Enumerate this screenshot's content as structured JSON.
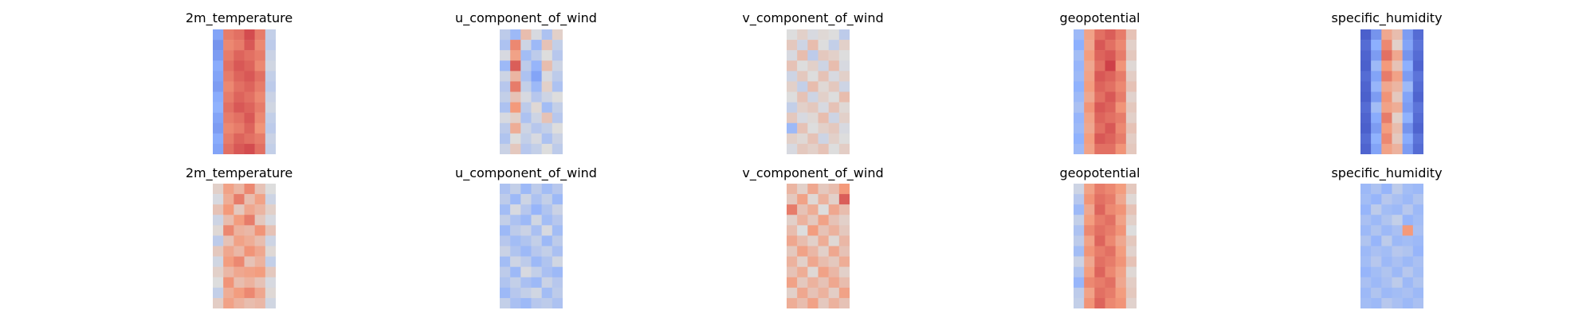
{
  "chart_data": [
    {
      "type": "heatmap",
      "title": "2m_temperature",
      "colormap": "coolwarm",
      "field": {
        "rows": 12,
        "cols": 6,
        "values": [
          [
            0.22,
            0.8,
            0.82,
            0.88,
            0.8,
            0.42
          ],
          [
            0.18,
            0.78,
            0.8,
            0.86,
            0.78,
            0.4
          ],
          [
            0.2,
            0.8,
            0.84,
            0.82,
            0.8,
            0.44
          ],
          [
            0.24,
            0.82,
            0.86,
            0.84,
            0.78,
            0.46
          ],
          [
            0.22,
            0.8,
            0.84,
            0.86,
            0.82,
            0.42
          ],
          [
            0.2,
            0.78,
            0.82,
            0.84,
            0.8,
            0.4
          ],
          [
            0.24,
            0.8,
            0.84,
            0.82,
            0.78,
            0.44
          ],
          [
            0.26,
            0.82,
            0.86,
            0.84,
            0.8,
            0.46
          ],
          [
            0.22,
            0.8,
            0.82,
            0.86,
            0.78,
            0.42
          ],
          [
            0.2,
            0.78,
            0.8,
            0.84,
            0.76,
            0.4
          ],
          [
            0.24,
            0.8,
            0.84,
            0.82,
            0.8,
            0.44
          ],
          [
            0.22,
            0.82,
            0.86,
            0.88,
            0.82,
            0.42
          ]
        ]
      }
    },
    {
      "type": "heatmap",
      "title": "u_component_of_wind",
      "colormap": "coolwarm",
      "field": {
        "rows": 12,
        "cols": 6,
        "values": [
          [
            0.4,
            0.3,
            0.62,
            0.48,
            0.35,
            0.55
          ],
          [
            0.35,
            0.78,
            0.45,
            0.3,
            0.6,
            0.42
          ],
          [
            0.48,
            0.72,
            0.32,
            0.4,
            0.5,
            0.38
          ],
          [
            0.3,
            0.85,
            0.4,
            0.28,
            0.62,
            0.45
          ],
          [
            0.45,
            0.65,
            0.35,
            0.22,
            0.48,
            0.4
          ],
          [
            0.38,
            0.8,
            0.42,
            0.3,
            0.55,
            0.35
          ],
          [
            0.42,
            0.6,
            0.48,
            0.38,
            0.45,
            0.5
          ],
          [
            0.35,
            0.75,
            0.4,
            0.52,
            0.32,
            0.42
          ],
          [
            0.48,
            0.55,
            0.35,
            0.45,
            0.6,
            0.38
          ],
          [
            0.4,
            0.68,
            0.45,
            0.38,
            0.42,
            0.5
          ],
          [
            0.36,
            0.5,
            0.42,
            0.48,
            0.35,
            0.44
          ],
          [
            0.44,
            0.58,
            0.38,
            0.42,
            0.5,
            0.4
          ]
        ]
      }
    },
    {
      "type": "heatmap",
      "title": "v_component_of_wind",
      "colormap": "coolwarm",
      "field": {
        "rows": 12,
        "cols": 6,
        "values": [
          [
            0.5,
            0.55,
            0.48,
            0.52,
            0.5,
            0.4
          ],
          [
            0.58,
            0.45,
            0.62,
            0.5,
            0.42,
            0.55
          ],
          [
            0.48,
            0.62,
            0.4,
            0.58,
            0.55,
            0.5
          ],
          [
            0.6,
            0.5,
            0.55,
            0.45,
            0.62,
            0.48
          ],
          [
            0.45,
            0.58,
            0.5,
            0.6,
            0.48,
            0.55
          ],
          [
            0.55,
            0.42,
            0.62,
            0.52,
            0.58,
            0.45
          ],
          [
            0.5,
            0.6,
            0.45,
            0.55,
            0.5,
            0.62
          ],
          [
            0.42,
            0.55,
            0.58,
            0.48,
            0.6,
            0.52
          ],
          [
            0.58,
            0.48,
            0.52,
            0.62,
            0.45,
            0.55
          ],
          [
            0.3,
            0.6,
            0.5,
            0.55,
            0.58,
            0.48
          ],
          [
            0.55,
            0.52,
            0.6,
            0.45,
            0.55,
            0.5
          ],
          [
            0.48,
            0.58,
            0.55,
            0.6,
            0.5,
            0.56
          ]
        ]
      }
    },
    {
      "type": "heatmap",
      "title": "geopotential",
      "colormap": "coolwarm",
      "field": {
        "rows": 12,
        "cols": 6,
        "values": [
          [
            0.3,
            0.72,
            0.82,
            0.85,
            0.8,
            0.6
          ],
          [
            0.25,
            0.7,
            0.86,
            0.82,
            0.78,
            0.55
          ],
          [
            0.32,
            0.74,
            0.84,
            0.86,
            0.8,
            0.58
          ],
          [
            0.28,
            0.7,
            0.82,
            0.9,
            0.76,
            0.52
          ],
          [
            0.3,
            0.72,
            0.86,
            0.84,
            0.8,
            0.56
          ],
          [
            0.26,
            0.74,
            0.84,
            0.82,
            0.78,
            0.6
          ],
          [
            0.3,
            0.7,
            0.82,
            0.86,
            0.8,
            0.54
          ],
          [
            0.34,
            0.76,
            0.86,
            0.84,
            0.76,
            0.58
          ],
          [
            0.28,
            0.72,
            0.84,
            0.82,
            0.8,
            0.55
          ],
          [
            0.3,
            0.7,
            0.82,
            0.86,
            0.78,
            0.6
          ],
          [
            0.26,
            0.74,
            0.86,
            0.84,
            0.8,
            0.56
          ],
          [
            0.3,
            0.72,
            0.82,
            0.82,
            0.76,
            0.58
          ]
        ]
      }
    },
    {
      "type": "heatmap",
      "title": "specific_humidity",
      "colormap": "coolwarm",
      "field": {
        "rows": 12,
        "cols": 6,
        "values": [
          [
            0.05,
            0.18,
            0.7,
            0.62,
            0.2,
            0.08
          ],
          [
            0.08,
            0.25,
            0.78,
            0.55,
            0.22,
            0.1
          ],
          [
            0.06,
            0.2,
            0.82,
            0.7,
            0.18,
            0.08
          ],
          [
            0.05,
            0.3,
            0.75,
            0.6,
            0.25,
            0.06
          ],
          [
            0.08,
            0.22,
            0.8,
            0.72,
            0.2,
            0.1
          ],
          [
            0.06,
            0.28,
            0.7,
            0.65,
            0.3,
            0.08
          ],
          [
            0.05,
            0.2,
            0.76,
            0.58,
            0.22,
            0.06
          ],
          [
            0.08,
            0.32,
            0.72,
            0.68,
            0.2,
            0.1
          ],
          [
            0.06,
            0.24,
            0.8,
            0.55,
            0.26,
            0.08
          ],
          [
            0.05,
            0.2,
            0.74,
            0.62,
            0.18,
            0.06
          ],
          [
            0.08,
            0.26,
            0.78,
            0.58,
            0.24,
            0.1
          ],
          [
            0.06,
            0.22,
            0.72,
            0.66,
            0.2,
            0.08
          ]
        ]
      }
    },
    {
      "type": "heatmap",
      "title": "2m_temperature",
      "colormap": "coolwarm",
      "field": {
        "rows": 12,
        "cols": 6,
        "values": [
          [
            0.55,
            0.72,
            0.65,
            0.78,
            0.6,
            0.5
          ],
          [
            0.48,
            0.68,
            0.8,
            0.62,
            0.72,
            0.45
          ],
          [
            0.6,
            0.75,
            0.58,
            0.7,
            0.65,
            0.55
          ],
          [
            0.45,
            0.62,
            0.74,
            0.8,
            0.58,
            0.48
          ],
          [
            0.52,
            0.78,
            0.66,
            0.64,
            0.76,
            0.6
          ],
          [
            0.4,
            0.6,
            0.72,
            0.68,
            0.62,
            0.45
          ],
          [
            0.58,
            0.7,
            0.64,
            0.76,
            0.7,
            0.52
          ],
          [
            0.46,
            0.74,
            0.78,
            0.6,
            0.66,
            0.42
          ],
          [
            0.55,
            0.64,
            0.7,
            0.72,
            0.74,
            0.58
          ],
          [
            0.5,
            0.76,
            0.62,
            0.66,
            0.6,
            0.48
          ],
          [
            0.42,
            0.68,
            0.74,
            0.78,
            0.7,
            0.52
          ],
          [
            0.56,
            0.72,
            0.66,
            0.62,
            0.64,
            0.46
          ]
        ]
      }
    },
    {
      "type": "heatmap",
      "title": "u_component_of_wind",
      "colormap": "coolwarm",
      "field": {
        "rows": 12,
        "cols": 6,
        "values": [
          [
            0.35,
            0.42,
            0.3,
            0.4,
            0.32,
            0.38
          ],
          [
            0.4,
            0.3,
            0.45,
            0.35,
            0.42,
            0.3
          ],
          [
            0.32,
            0.48,
            0.38,
            0.28,
            0.36,
            0.44
          ],
          [
            0.42,
            0.35,
            0.3,
            0.46,
            0.32,
            0.38
          ],
          [
            0.3,
            0.4,
            0.44,
            0.34,
            0.48,
            0.32
          ],
          [
            0.38,
            0.32,
            0.36,
            0.42,
            0.3,
            0.4
          ],
          [
            0.44,
            0.36,
            0.3,
            0.38,
            0.42,
            0.34
          ],
          [
            0.32,
            0.45,
            0.4,
            0.3,
            0.36,
            0.46
          ],
          [
            0.4,
            0.3,
            0.48,
            0.42,
            0.34,
            0.3
          ],
          [
            0.36,
            0.42,
            0.34,
            0.3,
            0.44,
            0.38
          ],
          [
            0.3,
            0.38,
            0.42,
            0.46,
            0.32,
            0.4
          ],
          [
            0.42,
            0.34,
            0.3,
            0.38,
            0.4,
            0.35
          ]
        ]
      }
    },
    {
      "type": "heatmap",
      "title": "v_component_of_wind",
      "colormap": "coolwarm",
      "field": {
        "rows": 12,
        "cols": 6,
        "values": [
          [
            0.65,
            0.55,
            0.7,
            0.58,
            0.62,
            0.75
          ],
          [
            0.58,
            0.72,
            0.52,
            0.66,
            0.55,
            0.85
          ],
          [
            0.8,
            0.6,
            0.68,
            0.5,
            0.7,
            0.62
          ],
          [
            0.55,
            0.66,
            0.58,
            0.72,
            0.6,
            0.55
          ],
          [
            0.62,
            0.5,
            0.74,
            0.6,
            0.66,
            0.58
          ],
          [
            0.7,
            0.62,
            0.55,
            0.68,
            0.52,
            0.64
          ],
          [
            0.58,
            0.72,
            0.64,
            0.55,
            0.7,
            0.6
          ],
          [
            0.66,
            0.55,
            0.7,
            0.62,
            0.58,
            0.68
          ],
          [
            0.6,
            0.68,
            0.52,
            0.72,
            0.64,
            0.55
          ],
          [
            0.72,
            0.58,
            0.66,
            0.6,
            0.7,
            0.62
          ],
          [
            0.55,
            0.7,
            0.6,
            0.66,
            0.56,
            0.72
          ],
          [
            0.68,
            0.62,
            0.72,
            0.58,
            0.66,
            0.6
          ]
        ]
      }
    },
    {
      "type": "heatmap",
      "title": "geopotential",
      "colormap": "coolwarm",
      "field": {
        "rows": 12,
        "cols": 6,
        "values": [
          [
            0.45,
            0.72,
            0.8,
            0.78,
            0.74,
            0.58
          ],
          [
            0.38,
            0.76,
            0.82,
            0.8,
            0.7,
            0.52
          ],
          [
            0.3,
            0.7,
            0.84,
            0.78,
            0.76,
            0.6
          ],
          [
            0.42,
            0.74,
            0.8,
            0.82,
            0.72,
            0.55
          ],
          [
            0.35,
            0.78,
            0.82,
            0.8,
            0.76,
            0.5
          ],
          [
            0.4,
            0.72,
            0.84,
            0.78,
            0.7,
            0.58
          ],
          [
            0.32,
            0.76,
            0.8,
            0.82,
            0.74,
            0.54
          ],
          [
            0.44,
            0.7,
            0.82,
            0.8,
            0.76,
            0.6
          ],
          [
            0.36,
            0.74,
            0.84,
            0.78,
            0.72,
            0.52
          ],
          [
            0.28,
            0.78,
            0.8,
            0.82,
            0.7,
            0.56
          ],
          [
            0.4,
            0.72,
            0.82,
            0.8,
            0.74,
            0.58
          ],
          [
            0.42,
            0.76,
            0.84,
            0.78,
            0.76,
            0.54
          ]
        ]
      }
    },
    {
      "type": "heatmap",
      "title": "specific_humidity",
      "colormap": "coolwarm",
      "field": {
        "rows": 12,
        "cols": 6,
        "values": [
          [
            0.3,
            0.35,
            0.28,
            0.4,
            0.32,
            0.3
          ],
          [
            0.32,
            0.28,
            0.38,
            0.34,
            0.3,
            0.36
          ],
          [
            0.28,
            0.4,
            0.32,
            0.3,
            0.38,
            0.3
          ],
          [
            0.34,
            0.3,
            0.36,
            0.42,
            0.28,
            0.32
          ],
          [
            0.3,
            0.36,
            0.3,
            0.34,
            0.75,
            0.34
          ],
          [
            0.36,
            0.28,
            0.4,
            0.3,
            0.32,
            0.3
          ],
          [
            0.3,
            0.34,
            0.32,
            0.38,
            0.36,
            0.28
          ],
          [
            0.32,
            0.38,
            0.3,
            0.34,
            0.3,
            0.34
          ],
          [
            0.28,
            0.32,
            0.36,
            0.3,
            0.38,
            0.32
          ],
          [
            0.34,
            0.3,
            0.34,
            0.4,
            0.3,
            0.36
          ],
          [
            0.3,
            0.36,
            0.3,
            0.32,
            0.34,
            0.3
          ],
          [
            0.32,
            0.3,
            0.38,
            0.34,
            0.3,
            0.34
          ]
        ]
      }
    }
  ]
}
